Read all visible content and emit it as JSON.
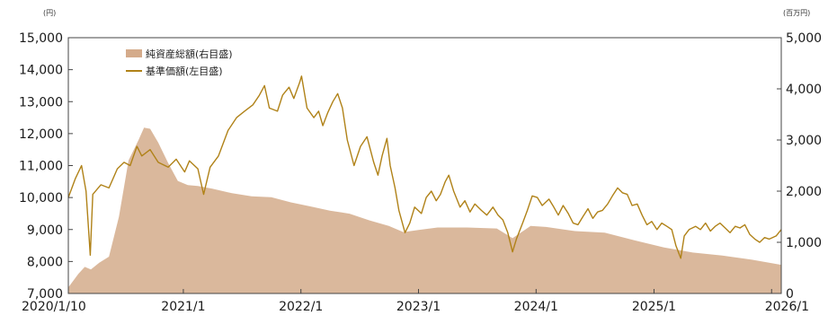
{
  "chart_data": {
    "type": "line",
    "title": "",
    "left_unit": "(円)",
    "right_unit": "(百万円)",
    "left_ylim": [
      7000,
      15000
    ],
    "left_ticks": [
      "7,000",
      "8,000",
      "9,000",
      "10,000",
      "11,000",
      "12,000",
      "13,000",
      "14,000",
      "15,000"
    ],
    "right_ylim": [
      0,
      5000
    ],
    "right_ticks": [
      "0",
      "1,000",
      "2,000",
      "3,000",
      "4,000",
      "5,000"
    ],
    "x_ticks": [
      "2020/1/10",
      "2021/1",
      "2022/1",
      "2023/1",
      "2024/1",
      "2025/1",
      "2026/1"
    ],
    "x_range": [
      "2020-01-10",
      "2026-01-31"
    ],
    "legend_position": "top-left",
    "grid": false,
    "series": [
      {
        "name": "純資産総額(右目盛)",
        "axis": "right",
        "kind": "area",
        "color": "#d4ab8b",
        "points": [
          [
            "2020-01-10",
            120
          ],
          [
            "2020-02-10",
            380
          ],
          [
            "2020-03-01",
            520
          ],
          [
            "2020-03-20",
            470
          ],
          [
            "2020-04-15",
            600
          ],
          [
            "2020-05-15",
            720
          ],
          [
            "2020-06-15",
            1500
          ],
          [
            "2020-07-15",
            2600
          ],
          [
            "2020-08-15",
            3000
          ],
          [
            "2020-09-01",
            3240
          ],
          [
            "2020-09-20",
            3220
          ],
          [
            "2020-10-15",
            2950
          ],
          [
            "2020-11-15",
            2550
          ],
          [
            "2020-12-15",
            2200
          ],
          [
            "2021-01-15",
            2120
          ],
          [
            "2021-02-15",
            2100
          ],
          [
            "2021-04-01",
            2050
          ],
          [
            "2021-06-01",
            1960
          ],
          [
            "2021-08-01",
            1900
          ],
          [
            "2021-10-01",
            1880
          ],
          [
            "2021-12-01",
            1780
          ],
          [
            "2022-02-01",
            1700
          ],
          [
            "2022-04-01",
            1620
          ],
          [
            "2022-06-01",
            1560
          ],
          [
            "2022-08-01",
            1430
          ],
          [
            "2022-10-01",
            1320
          ],
          [
            "2022-11-15",
            1200
          ],
          [
            "2023-01-01",
            1240
          ],
          [
            "2023-03-01",
            1290
          ],
          [
            "2023-06-01",
            1290
          ],
          [
            "2023-09-01",
            1270
          ],
          [
            "2023-10-20",
            1080
          ],
          [
            "2023-12-15",
            1320
          ],
          [
            "2024-02-01",
            1300
          ],
          [
            "2024-05-01",
            1220
          ],
          [
            "2024-08-01",
            1190
          ],
          [
            "2024-11-01",
            1040
          ],
          [
            "2025-02-01",
            900
          ],
          [
            "2025-05-01",
            800
          ],
          [
            "2025-08-01",
            740
          ],
          [
            "2025-11-01",
            660
          ],
          [
            "2026-01-31",
            560
          ]
        ]
      },
      {
        "name": "基準価額(左目盛)",
        "axis": "left",
        "kind": "line",
        "color": "#b08218",
        "points": [
          [
            "2020-01-10",
            10000
          ],
          [
            "2020-02-01",
            10600
          ],
          [
            "2020-02-20",
            11000
          ],
          [
            "2020-03-05",
            10200
          ],
          [
            "2020-03-18",
            8200
          ],
          [
            "2020-03-26",
            10100
          ],
          [
            "2020-04-20",
            10400
          ],
          [
            "2020-05-15",
            10300
          ],
          [
            "2020-06-10",
            10900
          ],
          [
            "2020-07-01",
            11100
          ],
          [
            "2020-07-20",
            11000
          ],
          [
            "2020-08-10",
            11600
          ],
          [
            "2020-08-25",
            11300
          ],
          [
            "2020-09-20",
            11500
          ],
          [
            "2020-10-15",
            11100
          ],
          [
            "2020-11-15",
            10950
          ],
          [
            "2020-12-10",
            11200
          ],
          [
            "2021-01-05",
            10800
          ],
          [
            "2021-01-20",
            11150
          ],
          [
            "2021-02-15",
            10900
          ],
          [
            "2021-03-05",
            10100
          ],
          [
            "2021-03-25",
            10950
          ],
          [
            "2021-04-20",
            11300
          ],
          [
            "2021-05-20",
            12100
          ],
          [
            "2021-06-15",
            12500
          ],
          [
            "2021-07-10",
            12700
          ],
          [
            "2021-08-05",
            12900
          ],
          [
            "2021-08-25",
            13200
          ],
          [
            "2021-09-10",
            13500
          ],
          [
            "2021-09-25",
            12800
          ],
          [
            "2021-10-20",
            12700
          ],
          [
            "2021-11-05",
            13200
          ],
          [
            "2021-11-25",
            13450
          ],
          [
            "2021-12-10",
            13100
          ],
          [
            "2021-12-28",
            13600
          ],
          [
            "2022-01-03",
            13800
          ],
          [
            "2022-01-20",
            12800
          ],
          [
            "2022-02-10",
            12500
          ],
          [
            "2022-02-25",
            12700
          ],
          [
            "2022-03-10",
            12250
          ],
          [
            "2022-03-25",
            12650
          ],
          [
            "2022-04-10",
            13000
          ],
          [
            "2022-04-25",
            13250
          ],
          [
            "2022-05-10",
            12800
          ],
          [
            "2022-05-25",
            11800
          ],
          [
            "2022-06-15",
            11000
          ],
          [
            "2022-07-05",
            11600
          ],
          [
            "2022-07-25",
            11900
          ],
          [
            "2022-08-15",
            11100
          ],
          [
            "2022-08-28",
            10700
          ],
          [
            "2022-09-10",
            11300
          ],
          [
            "2022-09-25",
            11850
          ],
          [
            "2022-10-05",
            11000
          ],
          [
            "2022-10-20",
            10300
          ],
          [
            "2022-11-01",
            9600
          ],
          [
            "2022-11-20",
            8900
          ],
          [
            "2022-12-05",
            9200
          ],
          [
            "2022-12-20",
            9700
          ],
          [
            "2023-01-10",
            9500
          ],
          [
            "2023-01-25",
            10000
          ],
          [
            "2023-02-10",
            10200
          ],
          [
            "2023-02-25",
            9900
          ],
          [
            "2023-03-10",
            10100
          ],
          [
            "2023-03-25",
            10500
          ],
          [
            "2023-04-05",
            10700
          ],
          [
            "2023-04-20",
            10200
          ],
          [
            "2023-05-10",
            9700
          ],
          [
            "2023-05-25",
            9900
          ],
          [
            "2023-06-10",
            9550
          ],
          [
            "2023-06-25",
            9800
          ],
          [
            "2023-07-15",
            9600
          ],
          [
            "2023-08-01",
            9450
          ],
          [
            "2023-08-20",
            9700
          ],
          [
            "2023-09-05",
            9450
          ],
          [
            "2023-09-20",
            9300
          ],
          [
            "2023-10-05",
            8900
          ],
          [
            "2023-10-20",
            8300
          ],
          [
            "2023-11-01",
            8700
          ],
          [
            "2023-11-20",
            9200
          ],
          [
            "2023-12-05",
            9600
          ],
          [
            "2023-12-20",
            10050
          ],
          [
            "2024-01-05",
            10000
          ],
          [
            "2024-01-20",
            9750
          ],
          [
            "2024-02-10",
            9950
          ],
          [
            "2024-02-25",
            9700
          ],
          [
            "2024-03-10",
            9450
          ],
          [
            "2024-03-25",
            9750
          ],
          [
            "2024-04-10",
            9500
          ],
          [
            "2024-04-25",
            9200
          ],
          [
            "2024-05-10",
            9150
          ],
          [
            "2024-05-25",
            9400
          ],
          [
            "2024-06-10",
            9650
          ],
          [
            "2024-06-25",
            9350
          ],
          [
            "2024-07-10",
            9550
          ],
          [
            "2024-07-25",
            9600
          ],
          [
            "2024-08-10",
            9800
          ],
          [
            "2024-08-25",
            10050
          ],
          [
            "2024-09-10",
            10300
          ],
          [
            "2024-09-25",
            10150
          ],
          [
            "2024-10-10",
            10100
          ],
          [
            "2024-10-25",
            9750
          ],
          [
            "2024-11-10",
            9800
          ],
          [
            "2024-11-25",
            9450
          ],
          [
            "2024-12-10",
            9150
          ],
          [
            "2024-12-25",
            9250
          ],
          [
            "2025-01-10",
            9000
          ],
          [
            "2025-01-25",
            9200
          ],
          [
            "2025-02-10",
            9100
          ],
          [
            "2025-02-25",
            9000
          ],
          [
            "2025-03-10",
            8500
          ],
          [
            "2025-03-25",
            8100
          ],
          [
            "2025-04-05",
            8800
          ],
          [
            "2025-04-20",
            9000
          ],
          [
            "2025-05-10",
            9100
          ],
          [
            "2025-05-25",
            9000
          ],
          [
            "2025-06-10",
            9200
          ],
          [
            "2025-06-25",
            8950
          ],
          [
            "2025-07-10",
            9100
          ],
          [
            "2025-07-25",
            9200
          ],
          [
            "2025-08-10",
            9050
          ],
          [
            "2025-08-25",
            8900
          ],
          [
            "2025-09-10",
            9100
          ],
          [
            "2025-09-25",
            9050
          ],
          [
            "2025-10-10",
            9150
          ],
          [
            "2025-10-25",
            8850
          ],
          [
            "2025-11-10",
            8700
          ],
          [
            "2025-11-25",
            8600
          ],
          [
            "2025-12-10",
            8750
          ],
          [
            "2025-12-25",
            8700
          ],
          [
            "2026-01-15",
            8800
          ],
          [
            "2026-01-31",
            9000
          ]
        ]
      }
    ]
  }
}
